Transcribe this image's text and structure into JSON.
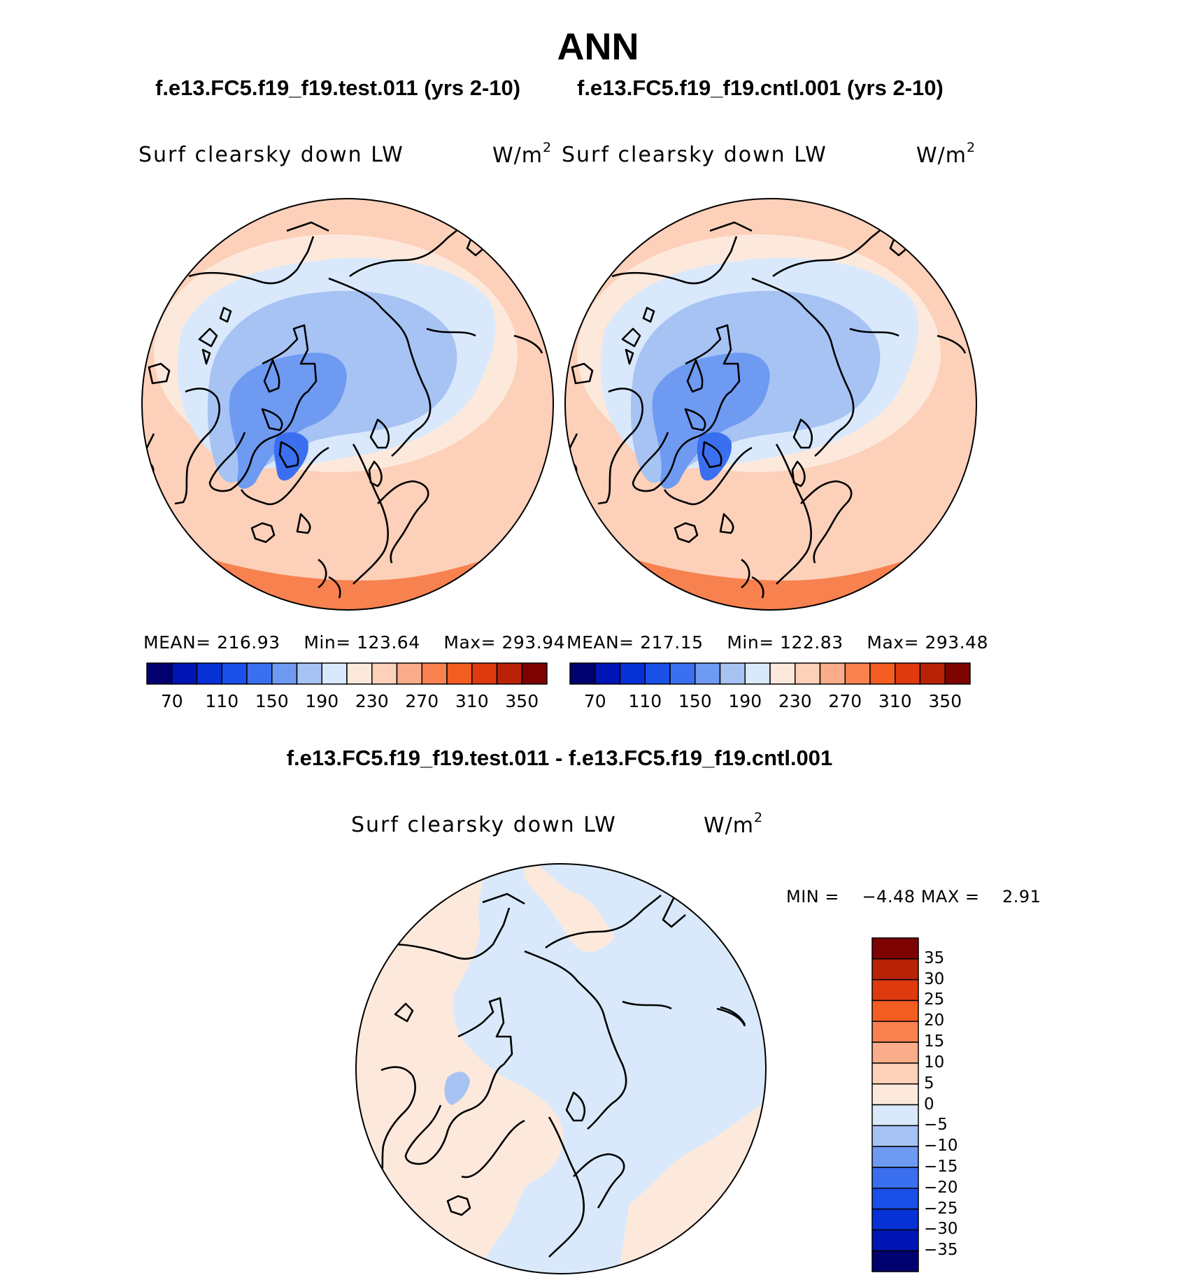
{
  "figure": {
    "title": "ANN",
    "left_run": "f.e13.FC5.f19_f19.test.011 (yrs 2-10)",
    "right_run": "f.e13.FC5.f19_f19.cntl.001 (yrs 2-10)",
    "diff_title": "f.e13.FC5.f19_f19.test.011 - f.e13.FC5.f19_f19.cntl.001"
  },
  "panels": [
    {
      "variable": "Surf clearsky down LW",
      "units": "W/m",
      "units_sup": "2",
      "stats": {
        "mean_label": "MEAN=",
        "mean": "216.93",
        "min_label": "Min=",
        "min": "123.64",
        "max_label": "Max=",
        "max": "293.94"
      }
    },
    {
      "variable": "Surf clearsky down LW",
      "units": "W/m",
      "units_sup": "2",
      "stats": {
        "mean_label": "MEAN=",
        "mean": "217.15",
        "min_label": "Min=",
        "min": "122.83",
        "max_label": "Max=",
        "max": "293.48"
      }
    }
  ],
  "diff_panel": {
    "variable": "Surf clearsky down LW",
    "units": "W/m",
    "units_sup": "2",
    "min_label": "MIN =",
    "min": "−4.48",
    "max_label": "MAX =",
    "max": "2.91"
  },
  "colorbars": {
    "absolute": {
      "colors": [
        "#00006f",
        "#0015b5",
        "#0531d6",
        "#1a4fe8",
        "#3a6ff0",
        "#6e9af2",
        "#a7c3f4",
        "#d9e9fb",
        "#fde9dc",
        "#fcd0b9",
        "#f9ad8a",
        "#f7814f",
        "#f45d22",
        "#de3a0e",
        "#b82308",
        "#7d0303"
      ],
      "tick_labels": [
        "70",
        "110",
        "150",
        "190",
        "230",
        "270",
        "310",
        "350"
      ]
    },
    "difference": {
      "colors": [
        "#00006f",
        "#0015b5",
        "#0531d6",
        "#1a4fe8",
        "#3a6ff0",
        "#6e9af2",
        "#a7c3f4",
        "#d9e9fb",
        "#fde9dc",
        "#fcd0b9",
        "#f9ad8a",
        "#f7814f",
        "#f45d22",
        "#de3a0e",
        "#b82308",
        "#7d0303"
      ],
      "tick_labels": [
        "35",
        "30",
        "25",
        "20",
        "15",
        "10",
        "5",
        "0",
        "−5",
        "−10",
        "−15",
        "−20",
        "−25",
        "−30",
        "−35"
      ]
    }
  }
}
